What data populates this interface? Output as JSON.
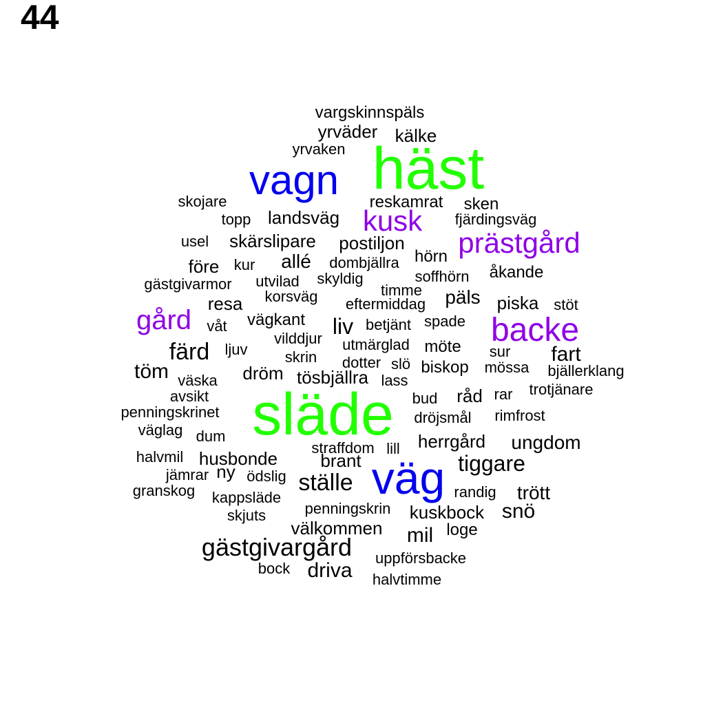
{
  "panel_label": "44",
  "colors": {
    "green": "#22ff00",
    "blue": "#0000ee",
    "purple": "#8f00e6",
    "black": "#000000"
  },
  "words": [
    {
      "text": "vargskinnspäls",
      "color": "black"
    },
    {
      "text": "yrväder",
      "color": "black"
    },
    {
      "text": "kälke",
      "color": "black"
    },
    {
      "text": "yrvaken",
      "color": "black"
    },
    {
      "text": "häst",
      "color": "green"
    },
    {
      "text": "vagn",
      "color": "blue"
    },
    {
      "text": "skojare",
      "color": "black"
    },
    {
      "text": "reskamrat",
      "color": "black"
    },
    {
      "text": "sken",
      "color": "black"
    },
    {
      "text": "topp",
      "color": "black"
    },
    {
      "text": "landsväg",
      "color": "black"
    },
    {
      "text": "kusk",
      "color": "purple"
    },
    {
      "text": "fjärdingsväg",
      "color": "black"
    },
    {
      "text": "usel",
      "color": "black"
    },
    {
      "text": "skärslipare",
      "color": "black"
    },
    {
      "text": "postiljon",
      "color": "black"
    },
    {
      "text": "prästgård",
      "color": "purple"
    },
    {
      "text": "före",
      "color": "black"
    },
    {
      "text": "kur",
      "color": "black"
    },
    {
      "text": "allé",
      "color": "black"
    },
    {
      "text": "dombjällra",
      "color": "black"
    },
    {
      "text": "hörn",
      "color": "black"
    },
    {
      "text": "åkande",
      "color": "black"
    },
    {
      "text": "gästgivarmor",
      "color": "black"
    },
    {
      "text": "utvilad",
      "color": "black"
    },
    {
      "text": "skyldig",
      "color": "black"
    },
    {
      "text": "soffhörn",
      "color": "black"
    },
    {
      "text": "timme",
      "color": "black"
    },
    {
      "text": "korsväg",
      "color": "black"
    },
    {
      "text": "resa",
      "color": "black"
    },
    {
      "text": "eftermiddag",
      "color": "black"
    },
    {
      "text": "päls",
      "color": "black"
    },
    {
      "text": "piska",
      "color": "black"
    },
    {
      "text": "stöt",
      "color": "black"
    },
    {
      "text": "gård",
      "color": "purple"
    },
    {
      "text": "våt",
      "color": "black"
    },
    {
      "text": "vägkant",
      "color": "black"
    },
    {
      "text": "liv",
      "color": "black"
    },
    {
      "text": "betjänt",
      "color": "black"
    },
    {
      "text": "spade",
      "color": "black"
    },
    {
      "text": "backe",
      "color": "purple"
    },
    {
      "text": "vilddjur",
      "color": "black"
    },
    {
      "text": "utmärglad",
      "color": "black"
    },
    {
      "text": "möte",
      "color": "black"
    },
    {
      "text": "färd",
      "color": "black"
    },
    {
      "text": "ljuv",
      "color": "black"
    },
    {
      "text": "skrin",
      "color": "black"
    },
    {
      "text": "sur",
      "color": "black"
    },
    {
      "text": "fart",
      "color": "black"
    },
    {
      "text": "dotter",
      "color": "black"
    },
    {
      "text": "slö",
      "color": "black"
    },
    {
      "text": "biskop",
      "color": "black"
    },
    {
      "text": "mössa",
      "color": "black"
    },
    {
      "text": "töm",
      "color": "black"
    },
    {
      "text": "dröm",
      "color": "black"
    },
    {
      "text": "tösbjällra",
      "color": "black"
    },
    {
      "text": "lass",
      "color": "black"
    },
    {
      "text": "bjällerklang",
      "color": "black"
    },
    {
      "text": "väska",
      "color": "black"
    },
    {
      "text": "avsikt",
      "color": "black"
    },
    {
      "text": "bud",
      "color": "black"
    },
    {
      "text": "råd",
      "color": "black"
    },
    {
      "text": "rar",
      "color": "black"
    },
    {
      "text": "trotjänare",
      "color": "black"
    },
    {
      "text": "släde",
      "color": "green"
    },
    {
      "text": "penningskrinet",
      "color": "black"
    },
    {
      "text": "dröjsmål",
      "color": "black"
    },
    {
      "text": "rimfrost",
      "color": "black"
    },
    {
      "text": "väglag",
      "color": "black"
    },
    {
      "text": "dum",
      "color": "black"
    },
    {
      "text": "herrgård",
      "color": "black"
    },
    {
      "text": "ungdom",
      "color": "black"
    },
    {
      "text": "straffdom",
      "color": "black"
    },
    {
      "text": "lill",
      "color": "black"
    },
    {
      "text": "halvmil",
      "color": "black"
    },
    {
      "text": "husbonde",
      "color": "black"
    },
    {
      "text": "brant",
      "color": "black"
    },
    {
      "text": "tiggare",
      "color": "black"
    },
    {
      "text": "jämrar",
      "color": "black"
    },
    {
      "text": "ny",
      "color": "black"
    },
    {
      "text": "ödslig",
      "color": "black"
    },
    {
      "text": "väg",
      "color": "blue"
    },
    {
      "text": "ställe",
      "color": "black"
    },
    {
      "text": "granskog",
      "color": "black"
    },
    {
      "text": "kappsläde",
      "color": "black"
    },
    {
      "text": "randig",
      "color": "black"
    },
    {
      "text": "trött",
      "color": "black"
    },
    {
      "text": "penningskrin",
      "color": "black"
    },
    {
      "text": "skjuts",
      "color": "black"
    },
    {
      "text": "kuskbock",
      "color": "black"
    },
    {
      "text": "snö",
      "color": "black"
    },
    {
      "text": "välkommen",
      "color": "black"
    },
    {
      "text": "mil",
      "color": "black"
    },
    {
      "text": "loge",
      "color": "black"
    },
    {
      "text": "gästgivargård",
      "color": "black"
    },
    {
      "text": "uppförsbacke",
      "color": "black"
    },
    {
      "text": "bock",
      "color": "black"
    },
    {
      "text": "driva",
      "color": "black"
    },
    {
      "text": "halvtimme",
      "color": "black"
    }
  ]
}
